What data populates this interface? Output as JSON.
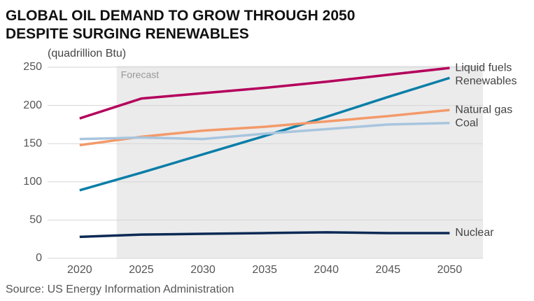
{
  "chart_data": {
    "type": "line",
    "title": [
      "GLOBAL OIL DEMAND TO GROW THROUGH 2050",
      "DESPITE SURGING RENEWABLES"
    ],
    "y_axis_label": "(quadrillion Btu)",
    "source": "Source: US Energy Information Administration",
    "forecast_label": "Forecast",
    "forecast_start": 2023,
    "x": [
      2020,
      2025,
      2030,
      2035,
      2040,
      2045,
      2050
    ],
    "xlim": [
      2017.4,
      2052.7
    ],
    "xticks": [
      2020,
      2025,
      2030,
      2035,
      2040,
      2045,
      2050
    ],
    "ylim": [
      0,
      250
    ],
    "yticks": [
      0,
      50,
      100,
      150,
      200,
      250
    ],
    "grid": true,
    "series": [
      {
        "name": "Liquid fuels",
        "color": "#b4005c",
        "values": [
          183,
          209,
          216,
          223,
          231,
          240,
          249
        ]
      },
      {
        "name": "Renewables",
        "color": "#0a7ea8",
        "values": [
          89,
          112,
          136,
          160,
          185,
          211,
          236
        ]
      },
      {
        "name": "Natural gas",
        "color": "#f39a6a",
        "values": [
          148,
          159,
          167,
          172,
          179,
          186,
          194
        ]
      },
      {
        "name": "Coal",
        "color": "#a8c5de",
        "values": [
          156,
          158,
          156,
          163,
          169,
          175,
          177
        ]
      },
      {
        "name": "Nuclear",
        "color": "#0c2a55",
        "values": [
          28,
          31,
          32,
          33,
          34,
          33,
          33
        ]
      }
    ]
  }
}
